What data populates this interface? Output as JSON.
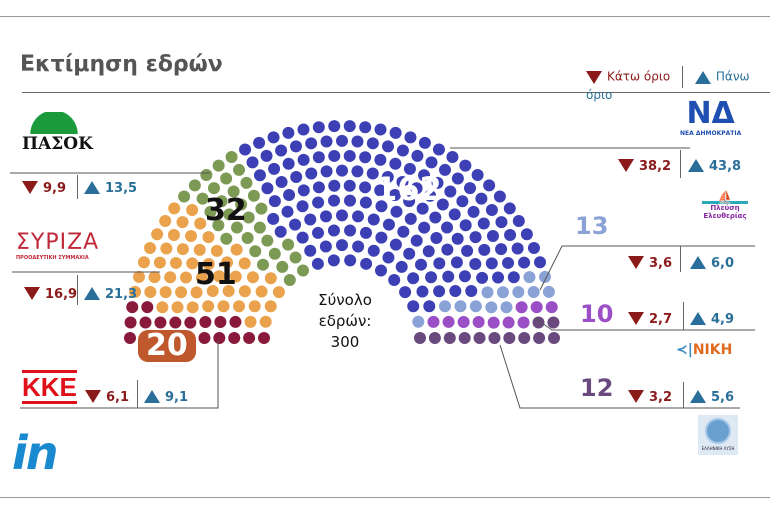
{
  "title": "Εκτίμηση εδρών",
  "legend": {
    "low": "Κάτω όριο",
    "high": "Πάνω όριο"
  },
  "center": {
    "line1": "Σύνολο",
    "line2": "εδρών:",
    "total": "300"
  },
  "brand": "in",
  "chart_data": {
    "type": "parliament",
    "title": "Εκτίμηση εδρών",
    "total": 300,
    "parties": [
      {
        "name": "ΚΚΕ",
        "seats": 20,
        "low": "6,1",
        "high": "9,1",
        "color": "#8a1a3c"
      },
      {
        "name": "ΣΥΡΙΖΑ",
        "subtitle": "ΠΡΟΟΔΕΥΤΙΚΗ ΣΥΜΜΑΧΙΑ",
        "seats": 51,
        "low": "16,9",
        "high": "21,3",
        "color": "#eaa34c"
      },
      {
        "name": "ΠΑΣΟΚ",
        "seats": 32,
        "low": "9,9",
        "high": "13,5",
        "color": "#7d9a55"
      },
      {
        "name": "ΝΔ",
        "subtitle": "ΝΕΑ ΔΗΜΟΚΡΑΤΙΑ",
        "seats": 162,
        "low": "38,2",
        "high": "43,8",
        "color": "#3c40b4"
      },
      {
        "name": "Πλεύση Ελευθερίας",
        "seats": 13,
        "low": "3,6",
        "high": "6,0",
        "color": "#8ba2d6"
      },
      {
        "name": "ΝΙΚΗ",
        "seats": 10,
        "low": "2,7",
        "high": "4,9",
        "color": "#9a4fc6"
      },
      {
        "name": "ΕΛΛΗΝΙΚΗ ΛΥΣΗ",
        "seats": 12,
        "low": "3,2",
        "high": "5,6",
        "color": "#6a4a7e"
      }
    ]
  }
}
